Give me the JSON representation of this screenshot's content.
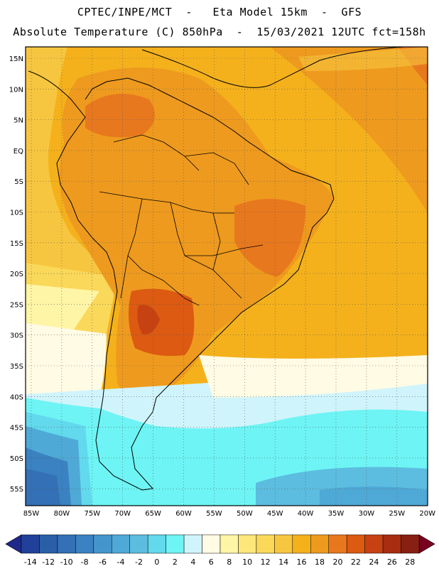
{
  "header": {
    "line1": "CPTEC/INPE/MCT  -   Eta Model 15km  -  GFS",
    "line2": "Absolute Temperature (C) 850hPa  -  15/03/2021 12UTC fct=158h"
  },
  "map": {
    "lat_labels": [
      "15N",
      "10N",
      "5N",
      "EQ",
      "5S",
      "10S",
      "15S",
      "20S",
      "25S",
      "30S",
      "35S",
      "40S",
      "45S",
      "50S",
      "55S"
    ],
    "lon_labels": [
      "85W",
      "80W",
      "75W",
      "70W",
      "65W",
      "60W",
      "55W",
      "50W",
      "45W",
      "40W",
      "35W",
      "30W",
      "25W",
      "20W"
    ]
  },
  "colorbar": {
    "tick_labels": [
      "-14",
      "-12",
      "-10",
      "-8",
      "-6",
      "-4",
      "-2",
      "0",
      "2",
      "4",
      "6",
      "8",
      "10",
      "12",
      "14",
      "16",
      "18",
      "20",
      "22",
      "24",
      "26",
      "28"
    ],
    "colors": [
      "#20409a",
      "#2a5fa8",
      "#3370b5",
      "#3a82c1",
      "#4495cc",
      "#4fa9d6",
      "#5cbde0",
      "#62d9ec",
      "#6ef4f4",
      "#d0f4fb",
      "#fffbe4",
      "#fff5a6",
      "#fde67a",
      "#fad85a",
      "#f7c640",
      "#f4b11c",
      "#ee9a1e",
      "#e8781e",
      "#dc5a12",
      "#c74212",
      "#a72c10",
      "#872012"
    ],
    "under_color": "#1e2a8a",
    "over_color": "#7a0020"
  }
}
